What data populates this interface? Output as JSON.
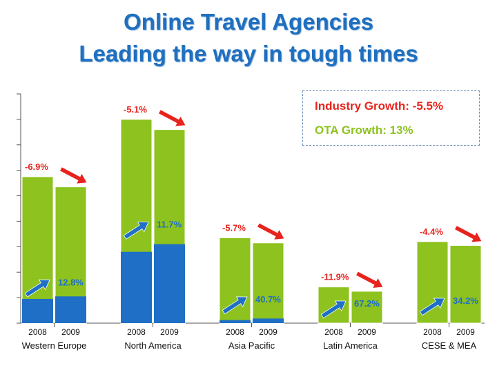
{
  "header": {
    "title_line1": "Online Travel Agencies",
    "title_line2": "Leading the way in tough times"
  },
  "legend": {
    "industry": "Industry Growth: -5.5%",
    "ota": "OTA Growth: 13%"
  },
  "colors": {
    "total_bar": "#8dc21f",
    "ota_bar": "#1f6fc6",
    "industry_label": "#e8231c",
    "ota_label": "#1f6fc6",
    "industry_arrow": "#e8231c",
    "ota_arrow": "#1f6fc6",
    "title": "#1f6fbf"
  },
  "chart_data": {
    "type": "bar",
    "stacked": true,
    "ylim": [
      0,
      9
    ],
    "grid": false,
    "legend_position": "top-right",
    "groups": [
      {
        "region": "Western Europe",
        "years": [
          "2008",
          "2009"
        ],
        "total": [
          5.75,
          5.35
        ],
        "ota": [
          0.95,
          1.05
        ],
        "industry_growth": "-6.9%",
        "ota_growth": "12.8%"
      },
      {
        "region": "North America",
        "years": [
          "2008",
          "2009"
        ],
        "total": [
          8.0,
          7.6
        ],
        "ota": [
          2.8,
          3.1
        ],
        "industry_growth": "-5.1%",
        "ota_growth": "11.7%"
      },
      {
        "region": "Asia Pacific",
        "years": [
          "2008",
          "2009"
        ],
        "total": [
          3.35,
          3.15
        ],
        "ota": [
          0.12,
          0.18
        ],
        "industry_growth": "-5.7%",
        "ota_growth": "40.7%"
      },
      {
        "region": "Latin America",
        "years": [
          "2008",
          "2009"
        ],
        "total": [
          1.42,
          1.25
        ],
        "ota": [
          0.0,
          0.0
        ],
        "industry_growth": "-11.9%",
        "ota_growth": "67.2%"
      },
      {
        "region": "CESE & MEA",
        "years": [
          "2008",
          "2009"
        ],
        "total": [
          3.2,
          3.05
        ],
        "ota": [
          0.0,
          0.0
        ],
        "industry_growth": "-4.4%",
        "ota_growth": "34.2%"
      }
    ]
  }
}
